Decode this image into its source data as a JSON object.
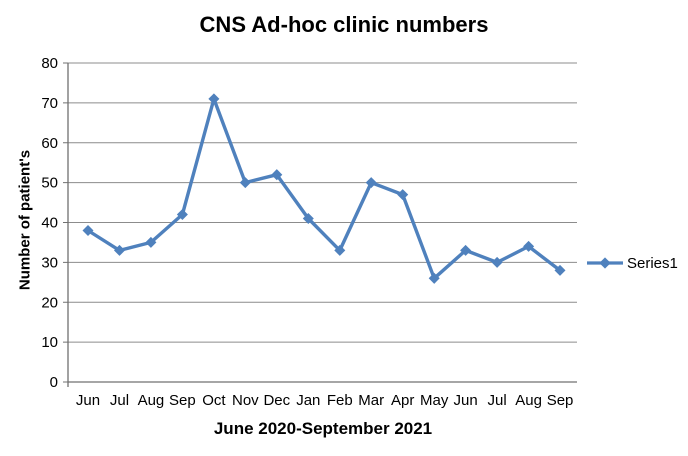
{
  "chart_data": {
    "type": "line",
    "title": "CNS Ad-hoc clinic numbers",
    "xlabel": "June 2020-September 2021",
    "ylabel": "Number of patient's",
    "categories": [
      "Jun",
      "Jul",
      "Aug",
      "Sep",
      "Oct",
      "Nov",
      "Dec",
      "Jan",
      "Feb",
      "Mar",
      "Apr",
      "May",
      "Jun",
      "Jul",
      "Aug",
      "Sep"
    ],
    "series": [
      {
        "name": "Series1",
        "values": [
          38,
          33,
          35,
          42,
          71,
          50,
          52,
          41,
          33,
          50,
          47,
          26,
          33,
          30,
          34,
          28
        ]
      }
    ],
    "ylim": [
      0,
      80
    ],
    "yticks": [
      0,
      10,
      20,
      30,
      40,
      50,
      60,
      70,
      80
    ],
    "grid": "horizontal-only",
    "marker": "diamond",
    "legend_position": "right",
    "colors": {
      "series": "#4F81BD",
      "gridline": "#8C8C8C",
      "axis": "#707070",
      "text": "#000000",
      "background": "#FFFFFF"
    }
  }
}
